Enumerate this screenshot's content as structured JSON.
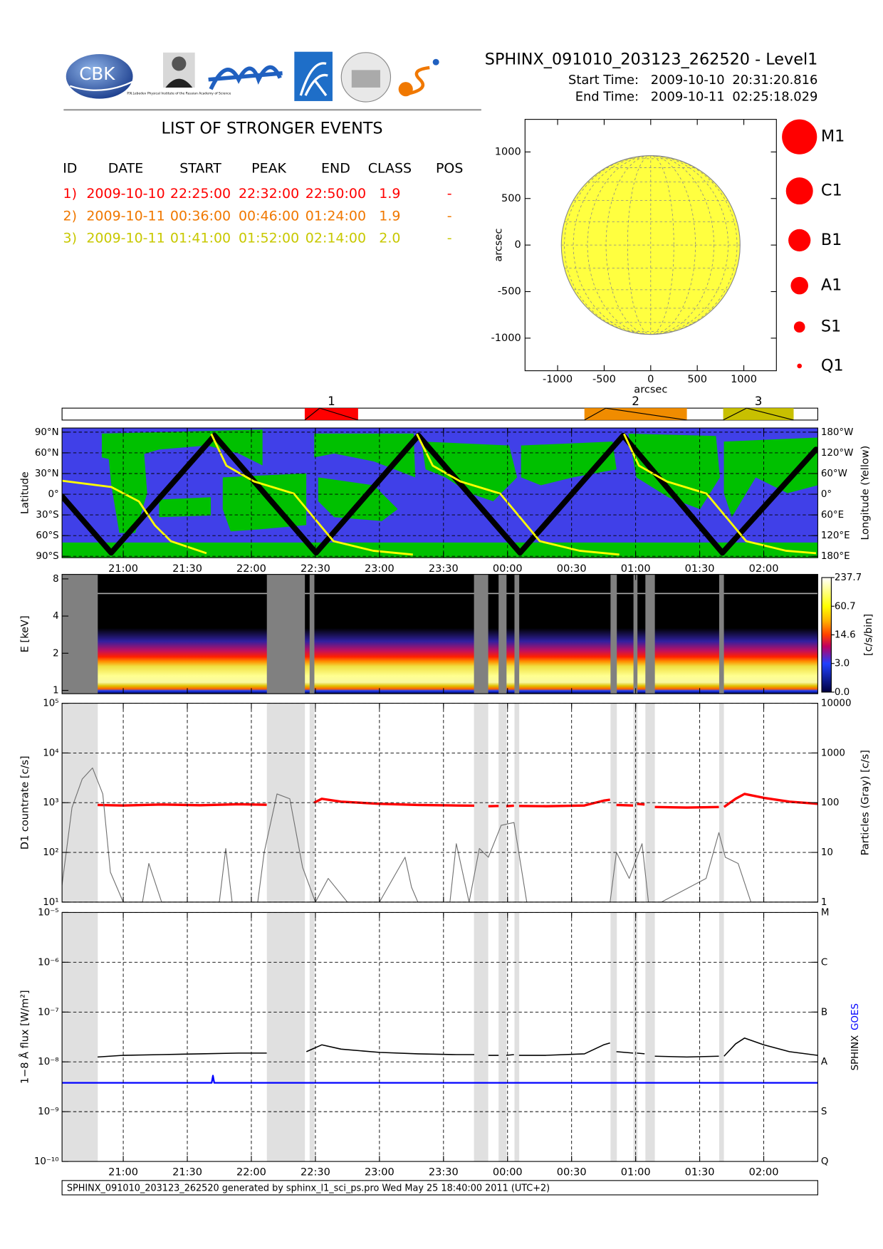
{
  "header": {
    "title": "SPHINX_091010_203123_262520 - Level1",
    "start_label": "Start Time:",
    "start_date": "2009-10-10",
    "start_clock": "20:31:20.816",
    "end_label": "End Time:",
    "end_date": "2009-10-11",
    "end_clock": "02:25:18.029",
    "logo_text": "CBK",
    "logo_caption": "P.N.Lebedev Physical Institute of the Russian Academy of Science"
  },
  "events_table": {
    "title": "LIST OF STRONGER EVENTS",
    "columns": [
      "ID",
      "DATE",
      "START",
      "PEAK",
      "END",
      "CLASS",
      "POS"
    ],
    "rows": [
      [
        "1)",
        "2009-10-10",
        "22:25:00",
        "22:32:00",
        "22:50:00",
        "1.9",
        "-"
      ],
      [
        "2)",
        "2009-10-11",
        "00:36:00",
        "00:46:00",
        "01:24:00",
        "1.9",
        "-"
      ],
      [
        "3)",
        "2009-10-11",
        "01:41:00",
        "01:52:00",
        "02:14:00",
        "2.0",
        "-"
      ]
    ],
    "colors": [
      "#ff0000",
      "#f07800",
      "#c8c800"
    ]
  },
  "chart_data": [
    {
      "type": "disk",
      "xlabel": "arcsec",
      "ylabel": "arcsec",
      "xlim": [
        -1350,
        1350
      ],
      "ylim": [
        -1350,
        1350
      ],
      "xticks": [
        -1000,
        -500,
        0,
        500,
        1000
      ],
      "yticks": [
        -1000,
        -500,
        0,
        500,
        1000
      ],
      "disk_radius": 960,
      "color": "#ffff40",
      "legend": [
        "M1",
        "C1",
        "B1",
        "A1",
        "S1",
        "Q1"
      ],
      "legend_color": "#ff0000"
    },
    {
      "type": "event-bar",
      "labels": [
        "1",
        "2",
        "3"
      ],
      "colors": [
        "#ff0000",
        "#f08c00",
        "#c8c000"
      ],
      "xlim": [
        20.5222,
        26.4217
      ]
    },
    {
      "type": "track",
      "ylabel": "Latitude",
      "y2label": "Longitude (Yellow)",
      "xlim": [
        20.5222,
        26.4217
      ],
      "grid": true,
      "show_xtick_labels": true,
      "background": "#4040e8",
      "region_color": "#00c000",
      "xticks": [
        {
          "value": 21,
          "label": "21:00"
        },
        {
          "value": 21.5,
          "label": "21:30"
        },
        {
          "value": 22,
          "label": "22:00"
        },
        {
          "value": 22.5,
          "label": "22:30"
        },
        {
          "value": 23,
          "label": "23:00"
        },
        {
          "value": 23.5,
          "label": "23:30"
        },
        {
          "value": 24,
          "label": "00:00"
        },
        {
          "value": 24.5,
          "label": "00:30"
        },
        {
          "value": 25,
          "label": "01:00"
        },
        {
          "value": 25.5,
          "label": "01:30"
        },
        {
          "value": 26,
          "label": "02:00"
        }
      ],
      "ylim": [
        -92,
        96
      ],
      "yticks": [
        {
          "value": 90,
          "label": "90°N"
        },
        {
          "value": 60,
          "label": "60°N"
        },
        {
          "value": 30,
          "label": "30°N"
        },
        {
          "value": 0,
          "label": "0°"
        },
        {
          "value": -30,
          "label": "30°S"
        },
        {
          "value": -60,
          "label": "60°S"
        },
        {
          "value": -90,
          "label": "90°S"
        }
      ],
      "y2lim": [
        -184,
        192
      ],
      "y2ticks": [
        {
          "value": 180,
          "label": "180°W"
        },
        {
          "value": 120,
          "label": "120°W"
        },
        {
          "value": 60,
          "label": "60°W"
        },
        {
          "value": 0,
          "label": "0°"
        },
        {
          "value": -60,
          "label": "60°E"
        },
        {
          "value": -120,
          "label": "120°E"
        },
        {
          "value": -180,
          "label": "180°E"
        }
      ],
      "series": [
        {
          "color": "#000000",
          "x": [
            20.522,
            20.906,
            21.712,
            22.505,
            23.304,
            24.097,
            24.903,
            25.677,
            26.408
          ],
          "values": [
            -3,
            -85,
            85,
            -85,
            85,
            -85,
            85,
            -85,
            65
          ]
        },
        {
          "color": "#ffff00",
          "axis": "y2",
          "x": [
            20.522,
            20.906,
            21.123,
            21.247,
            21.371,
            21.65,
            21.668,
            21.687,
            21.805,
            22.021,
            22.331,
            22.486,
            22.641,
            22.951,
            23.261,
            23.276,
            23.292,
            23.416,
            23.632,
            23.942,
            24.097,
            24.252,
            24.562,
            24.872,
            24.89,
            24.909,
            25.026,
            25.243,
            25.553,
            25.708,
            25.863,
            26.173,
            26.408
          ],
          "values": [
            39,
            21,
            -21,
            -90,
            -136,
            -171,
            null,
            175,
            83,
            37,
            2,
            -67,
            -136,
            -164,
            -175,
            null,
            175,
            83,
            37,
            2,
            -67,
            -136,
            -164,
            -175,
            null,
            175,
            83,
            37,
            2,
            -67,
            -136,
            -164,
            -171
          ]
        }
      ]
    },
    {
      "type": "spectrogram",
      "ylabel": "E [keV]",
      "log": true,
      "xlim": [
        20.5222,
        26.4217
      ],
      "ylim": [
        0.94,
        8.7
      ],
      "yticks": [
        1,
        2,
        4,
        8
      ],
      "xticks": [
        {
          "value": 21,
          "label": "21:00"
        },
        {
          "value": 21.5,
          "label": "21:30"
        },
        {
          "value": 22,
          "label": "22:00"
        },
        {
          "value": 22.5,
          "label": "22:30"
        },
        {
          "value": 23,
          "label": "23:00"
        },
        {
          "value": 23.5,
          "label": "23:30"
        },
        {
          "value": 24,
          "label": "00:00"
        },
        {
          "value": 24.5,
          "label": "00:30"
        },
        {
          "value": 25,
          "label": "01:00"
        },
        {
          "value": 25.5,
          "label": "01:30"
        },
        {
          "value": 26,
          "label": "02:00"
        }
      ],
      "gaps": [
        [
          20.522,
          20.801
        ],
        [
          22.121,
          22.418
        ],
        [
          22.455,
          22.492
        ],
        [
          23.738,
          23.849
        ],
        [
          23.93,
          23.992
        ],
        [
          24.054,
          24.091
        ],
        [
          24.804,
          24.853
        ],
        [
          24.983,
          25.014
        ],
        [
          25.076,
          25.15
        ],
        [
          25.652,
          25.689
        ]
      ],
      "gap_color": "#808080",
      "colorbar_label": "[c/s/bin]",
      "colorbar_ticks": [
        {
          "value": 0,
          "label": "0.0"
        },
        {
          "value": 3,
          "label": "3.0"
        },
        14.6,
        60.7,
        237.7
      ]
    },
    {
      "type": "line",
      "log": true,
      "ylabel": "D1 countrate [c/s]",
      "y2label": "Particles (Gray) [c/s]",
      "grid": true,
      "xlim": [
        20.5222,
        26.4217
      ],
      "xticks": [
        {
          "value": 21,
          "label": "21:00"
        },
        {
          "value": 21.5,
          "label": "21:30"
        },
        {
          "value": 22,
          "label": "22:00"
        },
        {
          "value": 22.5,
          "label": "22:30"
        },
        {
          "value": 23,
          "label": "23:00"
        },
        {
          "value": 23.5,
          "label": "23:30"
        },
        {
          "value": 24,
          "label": "00:00"
        },
        {
          "value": 24.5,
          "label": "00:30"
        },
        {
          "value": 25,
          "label": "01:00"
        },
        {
          "value": 25.5,
          "label": "01:30"
        },
        {
          "value": 26,
          "label": "02:00"
        }
      ],
      "ylim": [
        10,
        100000
      ],
      "yticks": [
        {
          "value": 10,
          "label": "10¹"
        },
        {
          "value": 100,
          "label": "10²"
        },
        {
          "value": 1000,
          "label": "10³"
        },
        {
          "value": 10000,
          "label": "10⁴"
        },
        {
          "value": 100000,
          "label": "10⁵"
        }
      ],
      "y2lim": [
        1,
        10000
      ],
      "y2ticks": [
        1,
        10,
        100,
        1000,
        10000
      ],
      "gaps": [
        [
          20.522,
          20.801
        ],
        [
          22.121,
          22.418
        ],
        [
          22.455,
          22.492
        ],
        [
          23.738,
          23.849
        ],
        [
          23.93,
          23.992
        ],
        [
          24.054,
          24.091
        ],
        [
          24.804,
          24.853
        ],
        [
          24.983,
          25.014
        ],
        [
          25.076,
          25.15
        ],
        [
          25.652,
          25.689
        ]
      ],
      "gap_color": "#e0e0e0",
      "series": [
        {
          "color": "#ff0000",
          "x": [
            20.8,
            21.0,
            21.3,
            21.6,
            21.9,
            22.12,
            22.3,
            22.49,
            22.55,
            22.7,
            23.0,
            23.3,
            23.6,
            23.74,
            23.8,
            23.85,
            23.93,
            23.96,
            23.99,
            24.05,
            24.07,
            24.09,
            24.3,
            24.6,
            24.75,
            24.8,
            24.83,
            24.85,
            24.98,
            25.0,
            25.01,
            25.07,
            25.1,
            25.15,
            25.4,
            25.65,
            25.67,
            25.69,
            25.78,
            25.85,
            26.0,
            26.2,
            26.42
          ],
          "values": [
            900,
            880,
            920,
            890,
            930,
            910,
            null,
            1000,
            1200,
            1050,
            950,
            900,
            880,
            870,
            null,
            850,
            860,
            null,
            850,
            870,
            null,
            860,
            850,
            880,
            1100,
            1150,
            null,
            900,
            880,
            null,
            950,
            920,
            null,
            820,
            800,
            820,
            null,
            820,
            1200,
            1500,
            1250,
            1050,
            950
          ]
        },
        {
          "color": "#707070",
          "axis": "y2",
          "x": [
            20.52,
            20.6,
            20.68,
            20.76,
            20.84,
            20.9,
            21.0,
            21.15,
            21.2,
            21.3,
            21.75,
            21.8,
            21.85,
            22.05,
            22.1,
            22.2,
            22.3,
            22.4,
            22.5,
            22.6,
            22.75,
            23.0,
            23.2,
            23.25,
            23.3,
            23.55,
            23.6,
            23.7,
            23.78,
            23.85,
            23.95,
            24.05,
            24.15,
            24.8,
            24.85,
            24.95,
            25.05,
            25.1,
            25.2,
            25.55,
            25.65,
            25.7,
            25.8,
            25.9,
            26.42
          ],
          "values": [
            2,
            80,
            300,
            500,
            150,
            4,
            1,
            1,
            6,
            1,
            1,
            12,
            1,
            1,
            10,
            150,
            120,
            5,
            1,
            3,
            1,
            1,
            8,
            2,
            1,
            1,
            15,
            1,
            12,
            8,
            35,
            40,
            1,
            1,
            10,
            3,
            15,
            1,
            1,
            3,
            25,
            8,
            6,
            1,
            1
          ]
        }
      ]
    },
    {
      "type": "line",
      "log": true,
      "ylabel": "1−8 Å flux [W/m²]",
      "grid": true,
      "show_xtick_labels": true,
      "xlim": [
        20.5222,
        26.4217
      ],
      "xticks": [
        {
          "value": 21,
          "label": "21:00"
        },
        {
          "value": 21.5,
          "label": "21:30"
        },
        {
          "value": 22,
          "label": "22:00"
        },
        {
          "value": 22.5,
          "label": "22:30"
        },
        {
          "value": 23,
          "label": "23:00"
        },
        {
          "value": 23.5,
          "label": "23:30"
        },
        {
          "value": 24,
          "label": "00:00"
        },
        {
          "value": 24.5,
          "label": "00:30"
        },
        {
          "value": 25,
          "label": "01:00"
        },
        {
          "value": 25.5,
          "label": "01:30"
        },
        {
          "value": 26,
          "label": "02:00"
        }
      ],
      "ylim": [
        1e-10,
        1e-05
      ],
      "yticks": [
        {
          "value": 1e-10,
          "label": "10⁻¹⁰"
        },
        {
          "value": 1e-09,
          "label": "10⁻⁹"
        },
        {
          "value": 1e-08,
          "label": "10⁻⁸"
        },
        {
          "value": 1e-07,
          "label": "10⁻⁷"
        },
        {
          "value": 1e-06,
          "label": "10⁻⁶"
        },
        {
          "value": 1e-05,
          "label": "10⁻⁵"
        }
      ],
      "y2lim": [
        1e-10,
        1e-05
      ],
      "y2ticks": [
        {
          "value": 1e-05,
          "label": "M"
        },
        {
          "value": 1e-06,
          "label": "C"
        },
        {
          "value": 1e-07,
          "label": "B"
        },
        {
          "value": 1e-08,
          "label": "A"
        },
        {
          "value": 1e-09,
          "label": "S"
        },
        {
          "value": 1e-10,
          "label": "Q"
        }
      ],
      "gaps": [
        [
          20.522,
          20.801
        ],
        [
          22.121,
          22.418
        ],
        [
          22.455,
          22.492
        ],
        [
          23.738,
          23.849
        ],
        [
          23.93,
          23.992
        ],
        [
          24.054,
          24.091
        ],
        [
          24.804,
          24.853
        ],
        [
          24.983,
          25.014
        ],
        [
          25.076,
          25.15
        ],
        [
          25.652,
          25.689
        ]
      ],
      "gap_color": "#e0e0e0",
      "series": [
        {
          "name": "SPHINX",
          "color": "#000000",
          "x": [
            20.8,
            21.0,
            21.3,
            21.6,
            21.9,
            22.12,
            22.3,
            22.43,
            22.55,
            22.7,
            23.0,
            23.3,
            23.6,
            23.74,
            23.8,
            23.85,
            23.93,
            23.96,
            23.99,
            24.05,
            24.07,
            24.09,
            24.3,
            24.6,
            24.75,
            24.8,
            24.83,
            24.85,
            24.98,
            25.0,
            25.01,
            25.07,
            25.1,
            25.15,
            25.4,
            25.65,
            25.67,
            25.69,
            25.78,
            25.85,
            26.0,
            26.2,
            26.42
          ],
          "values": [
            1.25e-08,
            1.35e-08,
            1.4e-08,
            1.45e-08,
            1.5e-08,
            1.5e-08,
            null,
            1.6e-08,
            2.2e-08,
            1.8e-08,
            1.55e-08,
            1.45e-08,
            1.4e-08,
            1.4e-08,
            null,
            1.35e-08,
            1.35e-08,
            null,
            1.35e-08,
            1.4e-08,
            null,
            1.35e-08,
            1.35e-08,
            1.45e-08,
            2.2e-08,
            2.4e-08,
            null,
            1.6e-08,
            1.5e-08,
            null,
            1.5e-08,
            1.45e-08,
            null,
            1.3e-08,
            1.25e-08,
            1.3e-08,
            null,
            1.3e-08,
            2.3e-08,
            3e-08,
            2.2e-08,
            1.6e-08,
            1.35e-08
          ]
        },
        {
          "name": "GOES",
          "color": "#0000ff",
          "x": [
            20.522,
            21.69,
            21.7,
            21.71,
            26.422
          ],
          "values": [
            3.8e-09,
            3.8e-09,
            5.3e-09,
            3.8e-09,
            3.8e-09
          ]
        }
      ]
    }
  ],
  "footer": "SPHINX_091010_203123_262520 generated by sphinx_l1_sci_ps.pro Wed May 25 18:40:00 2011 (UTC+2)"
}
